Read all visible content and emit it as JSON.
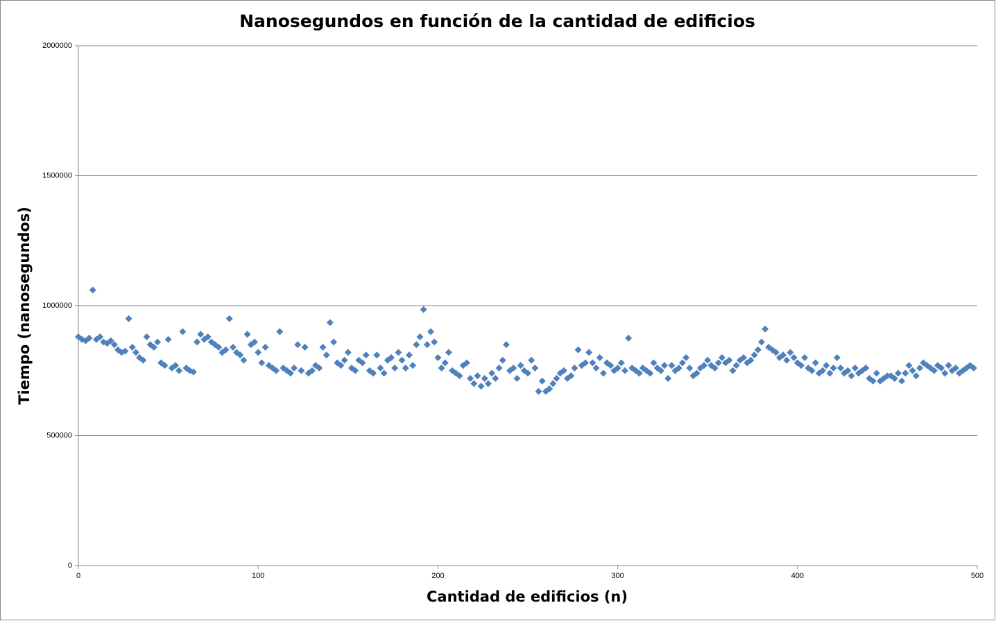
{
  "chart_data": {
    "type": "scatter",
    "title": "Nanosegundos en función de la cantidad de edificios",
    "x_label": "Cantidad de edificios (n)",
    "y_label": "Tiempo (nanosegundos)",
    "xlim": [
      0,
      500
    ],
    "xticks": [
      0,
      100,
      200,
      300,
      400,
      500
    ],
    "ylim": [
      0,
      2000000
    ],
    "yticks": [
      0,
      500000,
      1000000,
      1500000,
      2000000
    ],
    "grid": true,
    "color": "#4f81bd",
    "x": [
      0,
      2,
      4,
      6,
      8,
      10,
      12,
      14,
      16,
      18,
      20,
      22,
      24,
      26,
      28,
      30,
      32,
      34,
      36,
      38,
      40,
      42,
      44,
      46,
      48,
      50,
      52,
      54,
      56,
      58,
      60,
      62,
      64,
      66,
      68,
      70,
      72,
      74,
      76,
      78,
      80,
      82,
      84,
      86,
      88,
      90,
      92,
      94,
      96,
      98,
      100,
      102,
      104,
      106,
      108,
      110,
      112,
      114,
      116,
      118,
      120,
      122,
      124,
      126,
      128,
      130,
      132,
      134,
      136,
      138,
      140,
      142,
      144,
      146,
      148,
      150,
      152,
      154,
      156,
      158,
      160,
      162,
      164,
      166,
      168,
      170,
      172,
      174,
      176,
      178,
      180,
      182,
      184,
      186,
      188,
      190,
      192,
      194,
      196,
      198,
      200,
      202,
      204,
      206,
      208,
      210,
      212,
      214,
      216,
      218,
      220,
      222,
      224,
      226,
      228,
      230,
      232,
      234,
      236,
      238,
      240,
      242,
      244,
      246,
      248,
      250,
      252,
      254,
      256,
      258,
      260,
      262,
      264,
      266,
      268,
      270,
      272,
      274,
      276,
      278,
      280,
      282,
      284,
      286,
      288,
      290,
      292,
      294,
      296,
      298,
      300,
      302,
      304,
      306,
      308,
      310,
      312,
      314,
      316,
      318,
      320,
      322,
      324,
      326,
      328,
      330,
      332,
      334,
      336,
      338,
      340,
      342,
      344,
      346,
      348,
      350,
      352,
      354,
      356,
      358,
      360,
      362,
      364,
      366,
      368,
      370,
      372,
      374,
      376,
      378,
      380,
      382,
      384,
      386,
      388,
      390,
      392,
      394,
      396,
      398,
      400,
      402,
      404,
      406,
      408,
      410,
      412,
      414,
      416,
      418,
      420,
      422,
      424,
      426,
      428,
      430,
      432,
      434,
      436,
      438,
      440,
      442,
      444,
      446,
      448,
      450,
      452,
      454,
      456,
      458,
      460,
      462,
      464,
      466,
      468,
      470,
      472,
      474,
      476,
      478,
      480,
      482,
      484,
      486,
      488,
      490,
      492,
      494,
      496,
      498
    ],
    "values": [
      880000,
      870000,
      865000,
      875000,
      1060000,
      870000,
      880000,
      860000,
      855000,
      865000,
      850000,
      830000,
      820000,
      825000,
      950000,
      840000,
      820000,
      800000,
      790000,
      880000,
      850000,
      840000,
      860000,
      780000,
      770000,
      870000,
      760000,
      770000,
      750000,
      900000,
      760000,
      750000,
      745000,
      860000,
      890000,
      870000,
      880000,
      860000,
      850000,
      840000,
      820000,
      830000,
      950000,
      840000,
      820000,
      810000,
      790000,
      890000,
      850000,
      860000,
      820000,
      780000,
      840000,
      770000,
      760000,
      750000,
      900000,
      760000,
      750000,
      740000,
      760000,
      850000,
      750000,
      840000,
      740000,
      750000,
      770000,
      760000,
      840000,
      810000,
      935000,
      860000,
      780000,
      770000,
      790000,
      820000,
      760000,
      750000,
      790000,
      780000,
      810000,
      750000,
      740000,
      810000,
      760000,
      740000,
      790000,
      800000,
      760000,
      820000,
      790000,
      760000,
      810000,
      770000,
      850000,
      880000,
      985000,
      850000,
      900000,
      860000,
      800000,
      760000,
      780000,
      820000,
      750000,
      740000,
      730000,
      770000,
      780000,
      720000,
      700000,
      730000,
      690000,
      720000,
      700000,
      740000,
      720000,
      760000,
      790000,
      850000,
      750000,
      760000,
      720000,
      770000,
      750000,
      740000,
      790000,
      760000,
      670000,
      710000,
      670000,
      680000,
      700000,
      720000,
      740000,
      750000,
      720000,
      730000,
      760000,
      830000,
      770000,
      780000,
      820000,
      780000,
      760000,
      800000,
      740000,
      780000,
      770000,
      750000,
      760000,
      780000,
      750000,
      875000,
      760000,
      750000,
      740000,
      760000,
      750000,
      740000,
      780000,
      760000,
      750000,
      770000,
      720000,
      770000,
      750000,
      760000,
      780000,
      800000,
      760000,
      730000,
      740000,
      760000,
      770000,
      790000,
      770000,
      760000,
      780000,
      800000,
      780000,
      790000,
      750000,
      770000,
      790000,
      800000,
      780000,
      790000,
      810000,
      830000,
      860000,
      910000,
      840000,
      830000,
      820000,
      800000,
      810000,
      790000,
      820000,
      800000,
      780000,
      770000,
      800000,
      760000,
      750000,
      780000,
      740000,
      750000,
      770000,
      740000,
      760000,
      800000,
      760000,
      740000,
      750000,
      730000,
      760000,
      740000,
      750000,
      760000,
      720000,
      710000,
      740000,
      710000,
      720000,
      730000,
      730000,
      720000,
      740000,
      710000,
      740000,
      770000,
      750000,
      730000,
      760000,
      780000,
      770000,
      760000,
      750000,
      770000,
      760000,
      740000,
      770000,
      750000,
      760000,
      740000,
      750000,
      760000,
      770000,
      760000
    ]
  }
}
